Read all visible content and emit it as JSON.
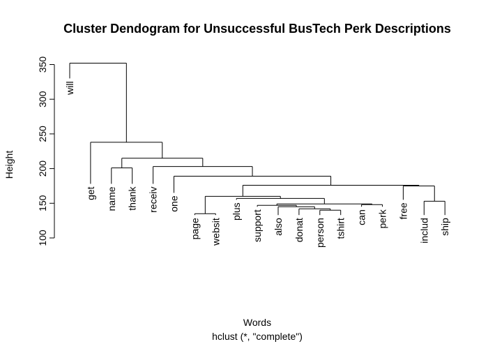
{
  "chart_data": {
    "type": "dendrogram",
    "title": "Cluster Dendogram for Unsuccessful BusTech Perk Descriptions",
    "xlabel": "Words",
    "sublabel": "hclust (*, \"complete\")",
    "ylabel": "Height",
    "ylim": [
      100,
      360
    ],
    "yticks": [
      100,
      150,
      200,
      250,
      300,
      350
    ],
    "leaves": [
      "will",
      "get",
      "name",
      "thank",
      "receiv",
      "one",
      "page",
      "websit",
      "plus",
      "support",
      "also",
      "donat",
      "person",
      "tshirt",
      "can",
      "perk",
      "free",
      "includ",
      "ship"
    ],
    "leaf_heights": [
      330,
      178,
      178,
      178,
      178,
      165,
      133,
      133,
      155,
      145,
      133,
      133,
      133,
      133,
      145,
      145,
      155,
      133,
      133
    ],
    "merges": [
      {
        "children": [
          "page",
          "websit"
        ],
        "height": 135
      },
      {
        "children": [
          "person",
          "tshirt"
        ],
        "height": 140
      },
      {
        "children": [
          "donat",
          [
            "person",
            "tshirt"
          ]
        ],
        "height": 142
      },
      {
        "children": [
          "also",
          [
            "donat",
            "person",
            "tshirt"
          ]
        ],
        "height": 145
      },
      {
        "children": [
          "support",
          [
            "also",
            "donat",
            "person",
            "tshirt"
          ]
        ],
        "height": 147
      },
      {
        "children": [
          "can",
          "perk"
        ],
        "height": 148
      },
      {
        "children": [
          [
            "support",
            "also",
            "donat",
            "person",
            "tshirt"
          ],
          [
            "can",
            "perk"
          ]
        ],
        "height": 149
      },
      {
        "children": [
          "includ",
          "ship"
        ],
        "height": 153
      },
      {
        "children": [
          "plus",
          [
            "support",
            "also",
            "donat",
            "person",
            "tshirt",
            "can",
            "perk"
          ]
        ],
        "height": 157
      },
      {
        "children": [
          [
            "page",
            "websit"
          ],
          [
            "plus",
            "support",
            "also",
            "donat",
            "person",
            "tshirt",
            "can",
            "perk"
          ]
        ],
        "height": 160
      },
      {
        "children": [
          "free",
          [
            "includ",
            "ship"
          ]
        ],
        "height": 175
      },
      {
        "children": [
          [
            "page",
            "…",
            "perk"
          ],
          [
            "free",
            "includ",
            "ship"
          ]
        ],
        "height": 176
      },
      {
        "children": [
          "one",
          [
            "page",
            "…",
            "ship"
          ]
        ],
        "height": 189
      },
      {
        "children": [
          "name",
          "thank"
        ],
        "height": 201
      },
      {
        "children": [
          "receiv",
          [
            "one",
            "…",
            "ship"
          ]
        ],
        "height": 203
      },
      {
        "children": [
          [
            "name",
            "thank"
          ],
          [
            "receiv",
            "…",
            "ship"
          ]
        ],
        "height": 215
      },
      {
        "children": [
          "get",
          [
            "name",
            "…",
            "ship"
          ]
        ],
        "height": 238
      },
      {
        "children": [
          "will",
          [
            "get",
            "…",
            "ship"
          ]
        ],
        "height": 352
      }
    ]
  }
}
